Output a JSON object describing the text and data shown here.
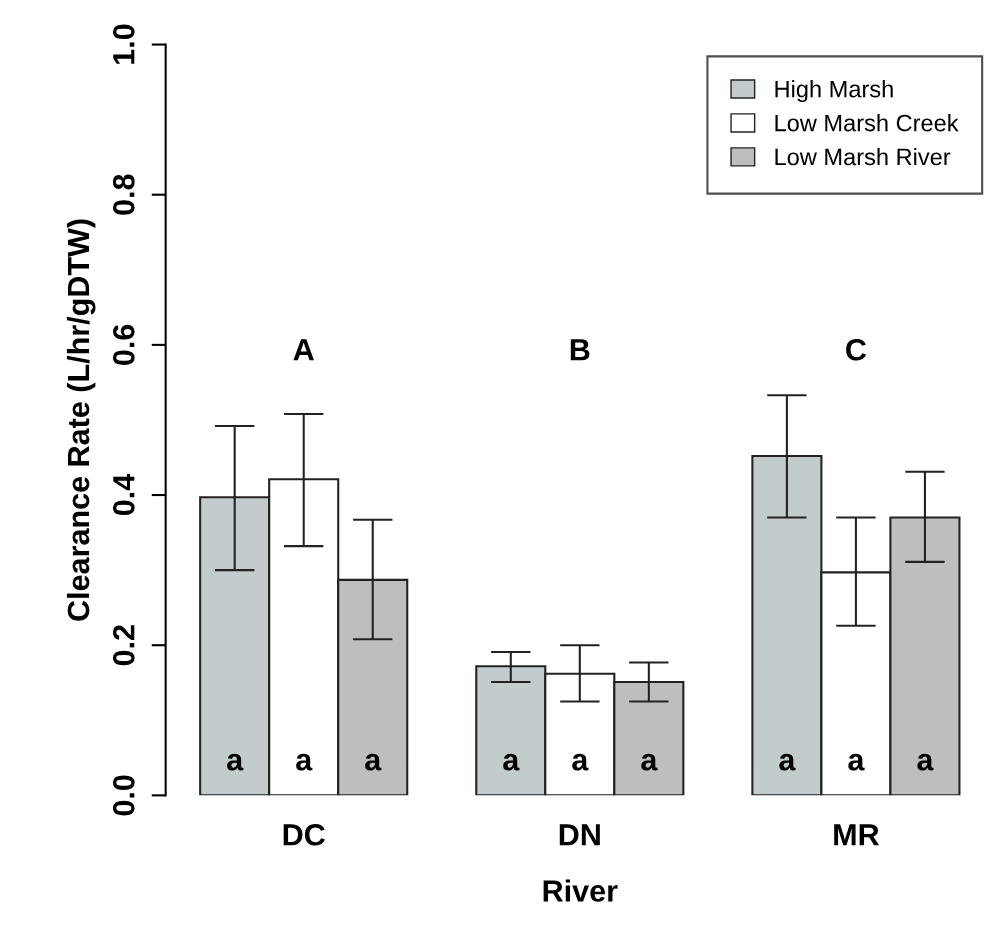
{
  "chart_data": {
    "type": "bar",
    "xlabel": "River",
    "ylabel": "Clearance Rate (L/hr/gDTW)",
    "categories": [
      "DC",
      "DN",
      "MR"
    ],
    "series": [
      {
        "name": "High Marsh",
        "color": "#c2cccc",
        "values": [
          0.397,
          0.172,
          0.452
        ],
        "errors": [
          [
            0.3,
            0.492
          ],
          [
            0.151,
            0.191
          ],
          [
            0.37,
            0.533
          ]
        ],
        "value_labels": [
          "a",
          "a",
          "a"
        ]
      },
      {
        "name": "Low Marsh Creek",
        "color": "#ffffff",
        "values": [
          0.421,
          0.162,
          0.297
        ],
        "errors": [
          [
            0.332,
            0.508
          ],
          [
            0.125,
            0.2
          ],
          [
            0.226,
            0.37
          ]
        ],
        "value_labels": [
          "a",
          "a",
          "a"
        ]
      },
      {
        "name": "Low Marsh River",
        "color": "#bebebe",
        "values": [
          0.287,
          0.151,
          0.37
        ],
        "errors": [
          [
            0.208,
            0.367
          ],
          [
            0.125,
            0.177
          ],
          [
            0.311,
            0.431
          ]
        ],
        "value_labels": [
          "a",
          "a",
          "a"
        ]
      }
    ],
    "annotations": [
      "A",
      "B",
      "C"
    ],
    "ylim": [
      0,
      1
    ],
    "yticks": [
      {
        "value": 0,
        "label": "0.0"
      },
      {
        "value": 0.2,
        "label": "0.2"
      },
      {
        "value": 0.4,
        "label": "0.4"
      },
      {
        "value": 0.6,
        "label": "0.6"
      },
      {
        "value": 0.8,
        "label": "0.8"
      },
      {
        "value": 1,
        "label": "1.0"
      }
    ],
    "grid": false,
    "legend": "top right"
  }
}
